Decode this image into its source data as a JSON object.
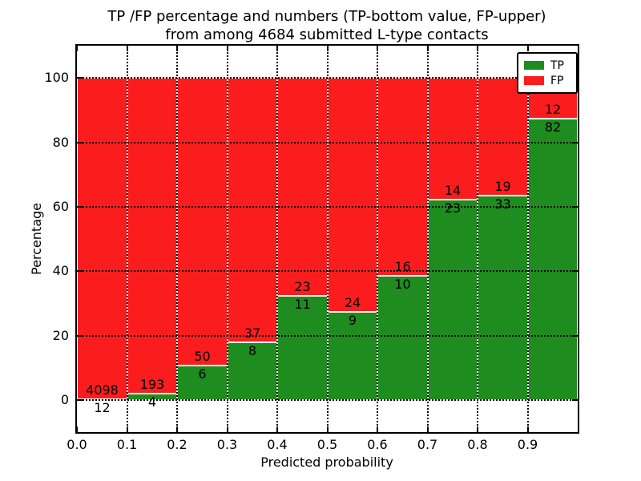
{
  "chart_data": {
    "type": "bar",
    "stacked": true,
    "title_lines": [
      "TP /FP percentage and numbers (TP-bottom value, FP-upper)",
      "from among 4684 submitted L-type contacts"
    ],
    "xlabel": "Predicted probability",
    "ylabel": "Percentage",
    "total_contacts": 4684,
    "bins": [
      {
        "x_start": 0.0,
        "x_end": 0.1,
        "tp": 12,
        "fp": 4098
      },
      {
        "x_start": 0.1,
        "x_end": 0.2,
        "tp": 4,
        "fp": 193
      },
      {
        "x_start": 0.2,
        "x_end": 0.3,
        "tp": 6,
        "fp": 50
      },
      {
        "x_start": 0.3,
        "x_end": 0.4,
        "tp": 8,
        "fp": 37
      },
      {
        "x_start": 0.4,
        "x_end": 0.5,
        "tp": 11,
        "fp": 23
      },
      {
        "x_start": 0.5,
        "x_end": 0.6,
        "tp": 9,
        "fp": 24
      },
      {
        "x_start": 0.6,
        "x_end": 0.7,
        "tp": 10,
        "fp": 16
      },
      {
        "x_start": 0.7,
        "x_end": 0.8,
        "tp": 23,
        "fp": 14
      },
      {
        "x_start": 0.8,
        "x_end": 0.9,
        "tp": 33,
        "fp": 19
      },
      {
        "x_start": 0.9,
        "x_end": 1.0,
        "tp": 82,
        "fp": 12
      }
    ],
    "series": [
      {
        "name": "TP",
        "color": "#1e8c1e"
      },
      {
        "name": "FP",
        "color": "#fb1d1d"
      }
    ],
    "xticks": [
      "0.0",
      "0.1",
      "0.2",
      "0.3",
      "0.4",
      "0.5",
      "0.6",
      "0.7",
      "0.8",
      "0.9"
    ],
    "yticks": [
      "0",
      "20",
      "40",
      "60",
      "80",
      "100"
    ],
    "xlim": [
      0.0,
      1.0
    ],
    "ylim": [
      -10,
      110
    ],
    "grid": "dotted",
    "legend_position": "upper right"
  }
}
